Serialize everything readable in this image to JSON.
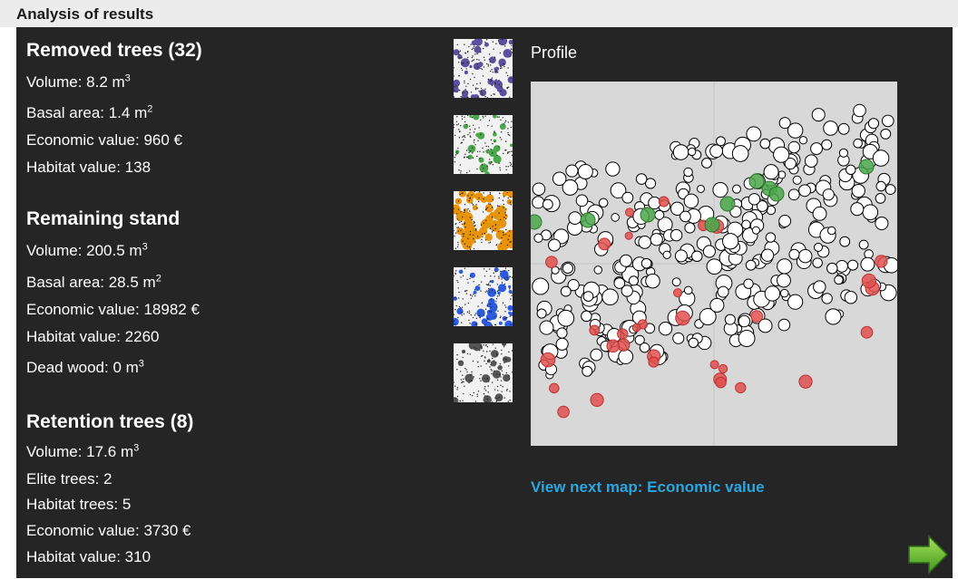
{
  "window": {
    "title": "Analysis of results"
  },
  "removed": {
    "title": "Removed trees (32)",
    "volume": {
      "label": "Volume: 8.2 m",
      "sup": "3"
    },
    "basal_area": {
      "label": "Basal area: 1.4 m",
      "sup": "2"
    },
    "economic": "Economic value: 960 €",
    "habitat": "Habitat value: 138"
  },
  "remaining": {
    "title": "Remaining stand",
    "volume": {
      "label": "Volume: 200.5 m",
      "sup": "3"
    },
    "basal_area": {
      "label": "Basal area: 28.5 m",
      "sup": "2"
    },
    "economic": "Economic value: 18982 €",
    "habitat": "Habitat value: 2260",
    "dead_wood": {
      "label": "Dead wood: 0 m",
      "sup": "3"
    }
  },
  "retention": {
    "title": "Retention trees (8)",
    "volume": {
      "label": "Volume: 17.6 m",
      "sup": "3"
    },
    "elite": "Elite trees: 2",
    "habitat_trees": "Habitat trees: 5",
    "economic": "Economic value: 3730 €",
    "habitat": "Habitat value: 310"
  },
  "thumbnails": [
    {
      "name": "purple-map-thumbnail",
      "color": "#5b4f9e"
    },
    {
      "name": "green-map-thumbnail",
      "color": "#4aa64a"
    },
    {
      "name": "orange-map-thumbnail",
      "color": "#e8940a"
    },
    {
      "name": "blue-map-thumbnail",
      "color": "#2d5be0"
    },
    {
      "name": "gray-map-thumbnail",
      "color": "#555555"
    }
  ],
  "profile": {
    "label": "Profile"
  },
  "next_map": {
    "label": "View next map: Economic value"
  },
  "icons": {
    "next": "right-arrow-icon"
  },
  "colors": {
    "panel": "#252525",
    "link": "#2aa6e0",
    "removed_tree": "#e05050",
    "retention_tree": "#4aa64a",
    "remaining_tree": "#ffffff"
  }
}
